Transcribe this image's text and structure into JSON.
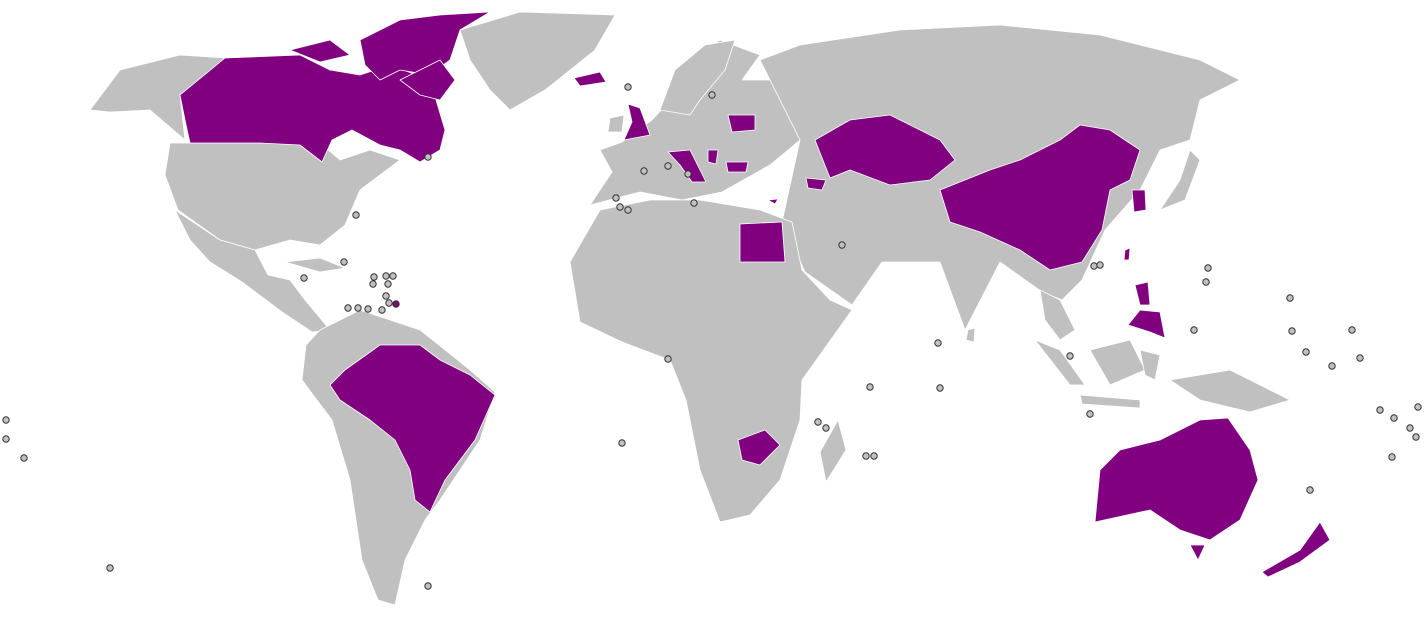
{
  "map": {
    "background_color": "#ffffff",
    "land_color": "#c0c0c0",
    "highlight_color": "#800080",
    "border_color": "#ffffff",
    "marker_outline_color": "#333333"
  }
}
